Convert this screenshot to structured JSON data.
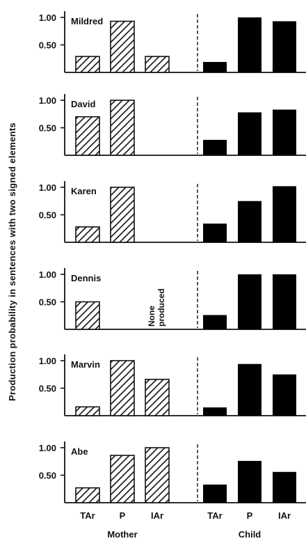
{
  "chart_data": {
    "type": "bar",
    "ylabel": "Production probability in sentences with two signed elements",
    "ytick_labels": [
      "0.50",
      "1.00"
    ],
    "yticks": [
      0.5,
      1.0
    ],
    "ylim": [
      0,
      1.05
    ],
    "categories": [
      "TAr",
      "P",
      "IAr"
    ],
    "groups": [
      {
        "name": "Mother",
        "pattern": "hatched"
      },
      {
        "name": "Child",
        "pattern": "solid"
      }
    ],
    "panels": [
      {
        "name": "Mildred",
        "mother": [
          0.29,
          0.93,
          0.29
        ],
        "child": [
          0.19,
          1.0,
          0.93
        ],
        "note": ""
      },
      {
        "name": "David",
        "mother": [
          0.7,
          1.0,
          null
        ],
        "child": [
          0.28,
          0.78,
          0.83
        ],
        "note": ""
      },
      {
        "name": "Karen",
        "mother": [
          0.28,
          1.0,
          null
        ],
        "child": [
          0.34,
          0.75,
          1.02
        ],
        "note": ""
      },
      {
        "name": "Dennis",
        "mother": [
          0.5,
          null,
          null
        ],
        "child": [
          0.26,
          1.0,
          1.0
        ],
        "note": "None produced"
      },
      {
        "name": "Marvin",
        "mother": [
          0.16,
          1.0,
          0.66
        ],
        "child": [
          0.15,
          0.94,
          0.75
        ],
        "note": ""
      },
      {
        "name": "Abe",
        "mother": [
          0.27,
          0.86,
          1.0
        ],
        "child": [
          0.33,
          0.76,
          0.56
        ],
        "note": ""
      }
    ],
    "colors": {
      "bar_stroke": "#111111",
      "solid_fill": "#000000",
      "hatch": "#111111"
    },
    "grid": false
  }
}
